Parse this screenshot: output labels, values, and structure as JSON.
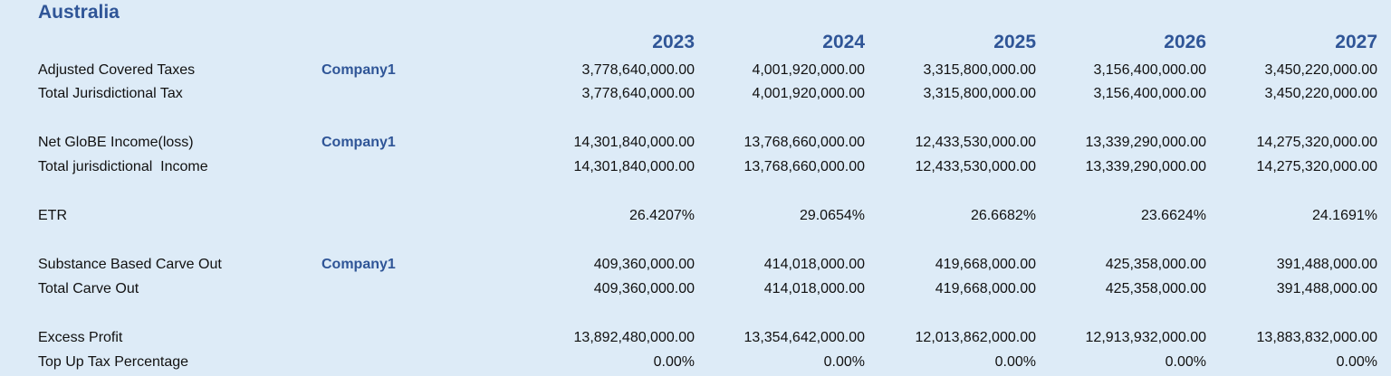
{
  "jurisdiction": "Australia",
  "years": [
    "2023",
    "2024",
    "2025",
    "2026",
    "2027"
  ],
  "rows": [
    {
      "label": "Adjusted Covered Taxes",
      "entity": "Company1",
      "values": [
        "3,778,640,000.00",
        "4,001,920,000.00",
        "3,315,800,000.00",
        "3,156,400,000.00",
        "3,450,220,000.00"
      ]
    },
    {
      "label": "Total Jurisdictional Tax",
      "entity": "",
      "values": [
        "3,778,640,000.00",
        "4,001,920,000.00",
        "3,315,800,000.00",
        "3,156,400,000.00",
        "3,450,220,000.00"
      ]
    },
    {
      "label": "Net GloBE Income(loss)",
      "entity": "Company1",
      "values": [
        "14,301,840,000.00",
        "13,768,660,000.00",
        "12,433,530,000.00",
        "13,339,290,000.00",
        "14,275,320,000.00"
      ]
    },
    {
      "label": "Total jurisdictional  Income",
      "entity": "",
      "values": [
        "14,301,840,000.00",
        "13,768,660,000.00",
        "12,433,530,000.00",
        "13,339,290,000.00",
        "14,275,320,000.00"
      ]
    },
    {
      "label": "ETR",
      "entity": "",
      "values": [
        "26.4207%",
        "29.0654%",
        "26.6682%",
        "23.6624%",
        "24.1691%"
      ]
    },
    {
      "label": "Substance Based Carve Out",
      "entity": "Company1",
      "values": [
        "409,360,000.00",
        "414,018,000.00",
        "419,668,000.00",
        "425,358,000.00",
        "391,488,000.00"
      ]
    },
    {
      "label": "Total Carve Out",
      "entity": "",
      "values": [
        "409,360,000.00",
        "414,018,000.00",
        "419,668,000.00",
        "425,358,000.00",
        "391,488,000.00"
      ]
    },
    {
      "label": "Excess Profit",
      "entity": "",
      "values": [
        "13,892,480,000.00",
        "13,354,642,000.00",
        "12,013,862,000.00",
        "12,913,932,000.00",
        "13,883,832,000.00"
      ]
    },
    {
      "label": "Top Up Tax Percentage",
      "entity": "",
      "values": [
        "0.00%",
        "0.00%",
        "0.00%",
        "0.00%",
        "0.00%"
      ]
    }
  ]
}
